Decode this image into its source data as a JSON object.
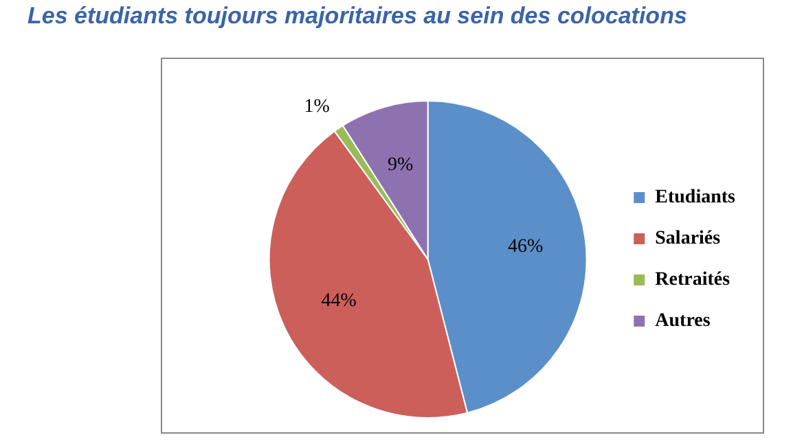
{
  "chart_data": {
    "type": "pie",
    "title": "Les étudiants toujours majoritaires au sein des colocations",
    "categories": [
      "Etudiants",
      "Salariés",
      "Retraités",
      "Autres"
    ],
    "values": [
      46,
      44,
      1,
      9
    ],
    "colors": [
      "#5b8fc9",
      "#cc5f5a",
      "#9bbb59",
      "#8e72b0"
    ],
    "value_labels": [
      "46%",
      "44%",
      "1%",
      "9%"
    ],
    "legend": "right"
  }
}
